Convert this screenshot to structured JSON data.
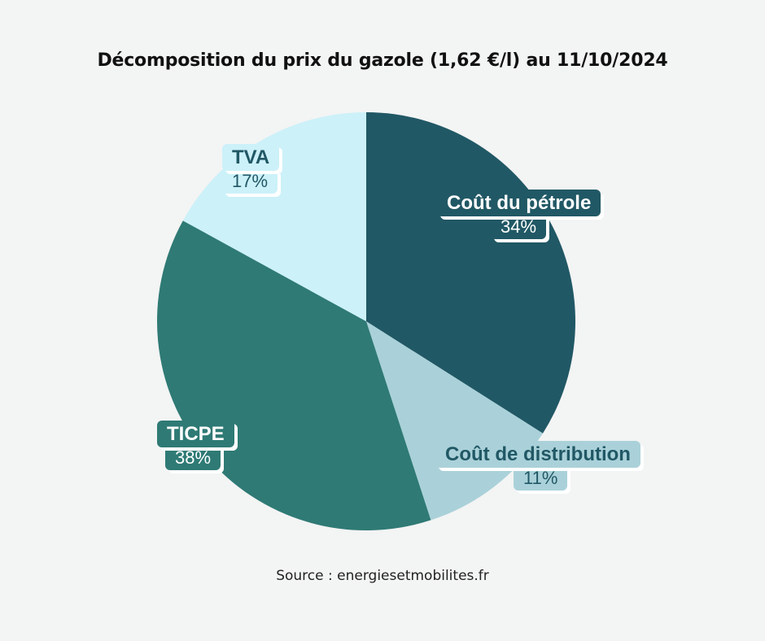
{
  "title": "Décomposition du prix du gazole (1,62 €/l) au 11/10/2024",
  "source": "Source : energiesetmobilites.fr",
  "chart_data": {
    "type": "pie",
    "title": "Décomposition du prix du gazole (1,62 €/l) au 11/10/2024",
    "slices": [
      {
        "name": "Coût du pétrole",
        "value": 34,
        "label": "34%",
        "color": "#215865",
        "text_color": "#ffffff"
      },
      {
        "name": "Coût de distribution",
        "value": 11,
        "label": "11%",
        "color": "#aad1d9",
        "text_color": "#215865"
      },
      {
        "name": "TICPE",
        "value": 38,
        "label": "38%",
        "color": "#2f7a75",
        "text_color": "#ffffff"
      },
      {
        "name": "TVA",
        "value": 17,
        "label": "17%",
        "color": "#ccf1f9",
        "text_color": "#215865"
      }
    ],
    "start_angle_deg": 0,
    "direction": "clockwise"
  }
}
